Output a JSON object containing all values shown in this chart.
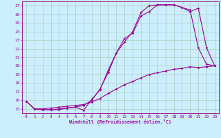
{
  "bg_color": "#cceeff",
  "line_color": "#990099",
  "grid_color": "#aaccbb",
  "xlabel": "Windchill (Refroidissement éolien,°C)",
  "xlim": [
    -0.5,
    23.5
  ],
  "ylim": [
    14.5,
    27.5
  ],
  "yticks": [
    15,
    16,
    17,
    18,
    19,
    20,
    21,
    22,
    23,
    24,
    25,
    26,
    27
  ],
  "xticks": [
    0,
    1,
    2,
    3,
    4,
    5,
    6,
    7,
    8,
    9,
    10,
    11,
    12,
    13,
    14,
    15,
    16,
    17,
    18,
    19,
    20,
    21,
    22,
    23
  ],
  "series1_x": [
    0,
    1,
    2,
    3,
    4,
    5,
    6,
    7,
    8,
    9,
    10,
    11,
    12,
    13,
    14,
    15,
    16,
    17,
    18,
    19,
    20,
    21,
    22,
    23
  ],
  "series1_y": [
    15.9,
    15.0,
    14.9,
    14.9,
    14.9,
    15.1,
    15.2,
    14.85,
    16.1,
    17.2,
    19.5,
    21.5,
    23.2,
    23.8,
    25.8,
    26.3,
    27.1,
    27.1,
    27.1,
    26.8,
    26.5,
    22.1,
    20.2,
    20.0
  ],
  "series2_x": [
    0,
    1,
    2,
    3,
    4,
    5,
    6,
    7,
    8,
    9,
    10,
    11,
    12,
    13,
    14,
    15,
    16,
    17,
    18,
    19,
    20,
    21,
    22,
    23
  ],
  "series2_y": [
    15.9,
    15.0,
    14.9,
    14.9,
    15.0,
    15.1,
    15.2,
    15.4,
    16.0,
    17.3,
    19.2,
    21.5,
    22.8,
    24.0,
    26.2,
    27.0,
    27.1,
    27.1,
    27.1,
    26.8,
    26.3,
    26.7,
    22.1,
    20.0
  ],
  "series3_x": [
    0,
    1,
    2,
    3,
    4,
    5,
    6,
    7,
    8,
    9,
    10,
    11,
    12,
    13,
    14,
    15,
    16,
    17,
    18,
    19,
    20,
    21,
    22,
    23
  ],
  "series3_y": [
    15.9,
    15.0,
    15.0,
    15.1,
    15.2,
    15.3,
    15.4,
    15.5,
    15.8,
    16.2,
    16.8,
    17.3,
    17.8,
    18.2,
    18.6,
    19.0,
    19.2,
    19.4,
    19.6,
    19.7,
    19.9,
    19.8,
    19.9,
    20.0
  ]
}
